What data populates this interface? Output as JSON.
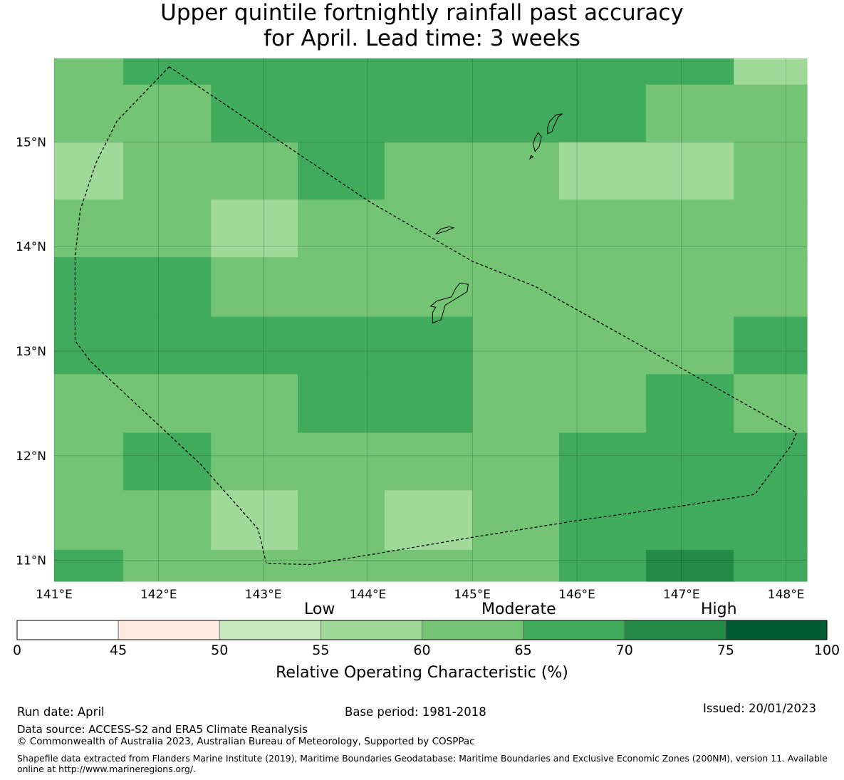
{
  "title": {
    "line1": "Upper quintile fortnightly rainfall past accuracy",
    "line2": "for April. Lead time: 3 weeks"
  },
  "map": {
    "lon_range": [
      141.0,
      148.2
    ],
    "lat_range": [
      10.8,
      15.8
    ],
    "lon_ticks": [
      {
        "value": 141,
        "label": "141°E"
      },
      {
        "value": 142,
        "label": "142°E"
      },
      {
        "value": 143,
        "label": "143°E"
      },
      {
        "value": 144,
        "label": "144°E"
      },
      {
        "value": 145,
        "label": "145°E"
      },
      {
        "value": 146,
        "label": "146°E"
      },
      {
        "value": 147,
        "label": "147°E"
      },
      {
        "value": 148,
        "label": "148°E"
      }
    ],
    "lat_ticks": [
      {
        "value": 15,
        "label": "15°N"
      },
      {
        "value": 14,
        "label": "14°N"
      },
      {
        "value": 13,
        "label": "13°N"
      },
      {
        "value": 12,
        "label": "12°N"
      },
      {
        "value": 11,
        "label": "11°N"
      }
    ],
    "grid_lines": true,
    "cell_lon_edges": [
      141.0,
      141.66,
      142.5,
      143.33,
      144.16,
      145.0,
      145.83,
      146.66,
      147.5,
      148.2
    ],
    "cell_lat_edges": [
      15.8,
      15.55,
      15.0,
      14.45,
      13.9,
      13.33,
      12.78,
      12.22,
      11.67,
      11.1,
      10.8
    ],
    "cell_classes": [
      [
        4,
        5,
        5,
        5,
        5,
        5,
        5,
        5,
        3
      ],
      [
        4,
        4,
        5,
        5,
        5,
        5,
        5,
        4,
        4
      ],
      [
        3,
        4,
        4,
        5,
        4,
        4,
        3,
        3,
        4
      ],
      [
        4,
        4,
        3,
        4,
        4,
        4,
        4,
        4,
        4
      ],
      [
        5,
        5,
        4,
        4,
        4,
        4,
        4,
        4,
        4
      ],
      [
        5,
        5,
        5,
        5,
        5,
        4,
        4,
        4,
        5
      ],
      [
        4,
        4,
        4,
        5,
        5,
        4,
        4,
        5,
        4
      ],
      [
        4,
        5,
        4,
        4,
        4,
        4,
        5,
        5,
        5
      ],
      [
        4,
        4,
        3,
        4,
        3,
        4,
        5,
        5,
        5
      ],
      [
        5,
        4,
        4,
        4,
        4,
        4,
        5,
        6,
        5
      ]
    ],
    "eez_boundary": [
      [
        142.1,
        15.72
      ],
      [
        141.6,
        15.2
      ],
      [
        141.4,
        14.8
      ],
      [
        141.25,
        14.35
      ],
      [
        141.2,
        13.9
      ],
      [
        141.2,
        13.45
      ],
      [
        141.2,
        13.1
      ],
      [
        141.35,
        12.9
      ],
      [
        142.4,
        11.92
      ],
      [
        142.95,
        11.3
      ],
      [
        143.03,
        10.97
      ],
      [
        143.45,
        10.96
      ],
      [
        144.0,
        11.05
      ],
      [
        145.0,
        11.22
      ],
      [
        146.0,
        11.38
      ],
      [
        147.0,
        11.52
      ],
      [
        147.7,
        11.63
      ],
      [
        148.05,
        12.1
      ],
      [
        148.1,
        12.22
      ],
      [
        145.6,
        13.62
      ],
      [
        145.0,
        13.86
      ],
      [
        144.0,
        14.44
      ],
      [
        142.1,
        15.72
      ]
    ],
    "islands": [
      [
        [
          144.62,
          13.27
        ],
        [
          144.7,
          13.3
        ],
        [
          144.74,
          13.44
        ],
        [
          144.95,
          13.57
        ],
        [
          144.96,
          13.64
        ],
        [
          144.88,
          13.65
        ],
        [
          144.84,
          13.6
        ],
        [
          144.8,
          13.52
        ],
        [
          144.66,
          13.48
        ],
        [
          144.6,
          13.43
        ],
        [
          144.65,
          13.42
        ],
        [
          144.62,
          13.37
        ],
        [
          144.62,
          13.27
        ]
      ],
      [
        [
          144.65,
          14.12
        ],
        [
          144.75,
          14.15
        ],
        [
          144.82,
          14.18
        ],
        [
          144.78,
          14.19
        ],
        [
          144.7,
          14.17
        ],
        [
          144.65,
          14.12
        ]
      ],
      [
        [
          145.6,
          14.91
        ],
        [
          145.64,
          14.96
        ],
        [
          145.66,
          15.05
        ],
        [
          145.63,
          15.09
        ],
        [
          145.6,
          15.04
        ],
        [
          145.58,
          14.98
        ],
        [
          145.6,
          14.91
        ]
      ],
      [
        [
          145.72,
          15.08
        ],
        [
          145.76,
          15.1
        ],
        [
          145.78,
          15.15
        ],
        [
          145.82,
          15.24
        ],
        [
          145.86,
          15.27
        ],
        [
          145.8,
          15.26
        ],
        [
          145.74,
          15.2
        ],
        [
          145.72,
          15.14
        ],
        [
          145.72,
          15.08
        ]
      ],
      [
        [
          145.55,
          14.84
        ],
        [
          145.58,
          14.86
        ],
        [
          145.56,
          14.87
        ],
        [
          145.55,
          14.84
        ]
      ]
    ],
    "colors": {
      "class_0": "#ffffff",
      "class_1": "#ffeae1",
      "class_2": "#c6e8bf",
      "class_3": "#a1d99b",
      "class_4": "#74c476",
      "class_5": "#41ab5d",
      "class_6": "#238b45",
      "class_7": "#005a32",
      "boundary": "#000000",
      "grid": "#000000"
    }
  },
  "colorbar": {
    "categories": {
      "low": "Low",
      "moderate": "Moderate",
      "high": "High"
    },
    "bins": [
      0,
      45,
      50,
      55,
      60,
      65,
      70,
      75,
      100
    ],
    "tick_labels": [
      "0",
      "45",
      "50",
      "55",
      "60",
      "65",
      "70",
      "75",
      "100"
    ],
    "bin_colors": [
      "#ffffff",
      "#ffeae1",
      "#c6e8bf",
      "#a1d99b",
      "#74c476",
      "#41ab5d",
      "#238b45",
      "#005a32"
    ],
    "label": "Relative Operating Characteristic (%)"
  },
  "footer": {
    "run_date": "Run date: April",
    "base_period": "Base period: 1981-2018",
    "issued": "Issued: 20/01/2023",
    "data_source": "Data source: ACCESS-S2 and ERA5 Climate Reanalysis",
    "copyright": "© Commonwealth of Australia 2023, Australian Bureau of Meteorology, Supported by COSPPac",
    "shapefile_note": "Shapefile data extracted from Flanders Marine Institute (2019), Maritime Boundaries Geodatabase: Maritime Boundaries and Exclusive Economic Zones (200NM), version 11. Available online at http://www.marineregions.org/."
  }
}
